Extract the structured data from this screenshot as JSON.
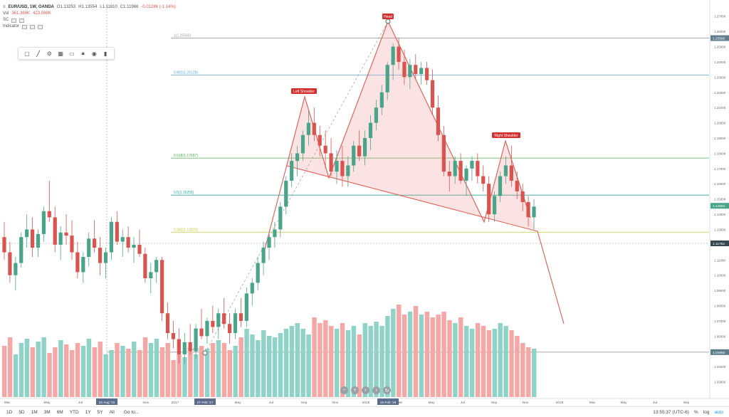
{
  "legend": {
    "symbol": "EUR/USD, 1W, OANDA",
    "open": "O1.13253",
    "high": "H1.13554",
    "low": "L1.11810",
    "close": "C1.11966",
    "change": "-0.01286 (-1.14%)",
    "vol_label": "Vol",
    "vol_value": "361.369K",
    "vol_value2": "423.598K",
    "row3_label": "SC",
    "row4_label": "Indicator"
  },
  "drawing_toolbar": {
    "tools": [
      "rect-icon",
      "pencil-icon",
      "settings-icon",
      "template-icon",
      "visibility-icon",
      "lock-icon",
      "eye-icon",
      "trash-icon"
    ]
  },
  "fib": [
    {
      "label": "1(1.25560)",
      "value": 1.2556,
      "color": "#9e9e9e"
    },
    {
      "label": "0.882(1.23128)",
      "value": 1.23128,
      "color": "#5aa9e6"
    },
    {
      "label": "0.618(1.17687)",
      "value": 1.17687,
      "color": "#4caf50"
    },
    {
      "label": "0.5(1.15255)",
      "value": 1.15255,
      "color": "#26a69a"
    },
    {
      "label": "0.382(1.12823)",
      "value": 1.12823,
      "color": "#c0ca33"
    },
    {
      "label": "0(1.04950)",
      "value": 1.0495,
      "color": "#9e9e9e"
    }
  ],
  "pattern_labels": {
    "head": "Head",
    "left_shoulder": "Left Shoulder",
    "right_shoulder": "Right Shoulder"
  },
  "price_axis": {
    "ticks": [
      "1.27000",
      "1.26000",
      "1.25000",
      "1.24000",
      "1.23000",
      "1.22000",
      "1.21000",
      "1.20000",
      "1.19000",
      "1.18000",
      "1.17000",
      "1.16000",
      "1.15000",
      "1.14000",
      "1.13000",
      "1.12000",
      "1.11000",
      "1.10000",
      "1.09000",
      "1.08000",
      "1.07000",
      "1.06000",
      "1.05000",
      "1.04000",
      "1.03000"
    ],
    "current_price": "1.11752",
    "tag_top": "1.25560",
    "tag_mid": "1.14554",
    "tag_bottom": "1.04950"
  },
  "time_axis": {
    "labels": [
      "Mar",
      "May",
      "Jul",
      "22 Aug '16",
      "Nov",
      "2017",
      "27 Feb '17",
      "May",
      "Jul",
      "Sep",
      "Nov",
      "2018",
      "15 Feb '18",
      "Mar",
      "May",
      "Jul",
      "Sep",
      "Nov",
      "2019",
      "Mar",
      "May",
      "Jul",
      "Sep"
    ]
  },
  "nav_controls": [
    "−",
    "+",
    "‹",
    "›",
    "↻"
  ],
  "bottom": {
    "timeframes": [
      "1D",
      "5D",
      "1M",
      "3M",
      "6M",
      "YTD",
      "1Y",
      "5Y",
      "All"
    ],
    "goto": "Go to...",
    "clock": "13:55:37 (UTC-6)",
    "pct": "%",
    "log": "log",
    "auto": "auto"
  },
  "chart_data": {
    "type": "candlestick",
    "title": "",
    "symbol": "EUR/USD, 1W, OANDA",
    "ylim": [
      1.02,
      1.275
    ],
    "candles": [
      [
        1.125,
        1.135,
        1.11,
        1.115
      ],
      [
        1.115,
        1.122,
        1.095,
        1.1
      ],
      [
        1.1,
        1.112,
        1.09,
        1.108
      ],
      [
        1.108,
        1.128,
        1.105,
        1.125
      ],
      [
        1.125,
        1.14,
        1.118,
        1.13
      ],
      [
        1.13,
        1.138,
        1.112,
        1.118
      ],
      [
        1.118,
        1.13,
        1.112,
        1.127
      ],
      [
        1.127,
        1.145,
        1.122,
        1.142
      ],
      [
        1.142,
        1.162,
        1.135,
        1.138
      ],
      [
        1.138,
        1.145,
        1.115,
        1.12
      ],
      [
        1.12,
        1.132,
        1.11,
        1.128
      ],
      [
        1.128,
        1.14,
        1.12,
        1.126
      ],
      [
        1.126,
        1.136,
        1.11,
        1.115
      ],
      [
        1.115,
        1.122,
        1.098,
        1.102
      ],
      [
        1.102,
        1.115,
        1.095,
        1.112
      ],
      [
        1.112,
        1.128,
        1.106,
        1.124
      ],
      [
        1.124,
        1.136,
        1.115,
        1.118
      ],
      [
        1.118,
        1.125,
        1.1,
        1.108
      ],
      [
        1.108,
        1.118,
        1.098,
        1.115
      ],
      [
        1.115,
        1.138,
        1.11,
        1.135
      ],
      [
        1.135,
        1.142,
        1.12,
        1.122
      ],
      [
        1.122,
        1.13,
        1.112,
        1.125
      ],
      [
        1.125,
        1.132,
        1.115,
        1.118
      ],
      [
        1.118,
        1.125,
        1.108,
        1.12
      ],
      [
        1.12,
        1.13,
        1.112,
        1.114
      ],
      [
        1.114,
        1.118,
        1.095,
        1.098
      ],
      [
        1.098,
        1.108,
        1.088,
        1.102
      ],
      [
        1.102,
        1.112,
        1.095,
        1.11
      ],
      [
        1.11,
        1.112,
        1.07,
        1.075
      ],
      [
        1.075,
        1.082,
        1.058,
        1.062
      ],
      [
        1.062,
        1.07,
        1.052,
        1.058
      ],
      [
        1.058,
        1.065,
        1.042,
        1.048
      ],
      [
        1.048,
        1.062,
        1.042,
        1.056
      ],
      [
        1.056,
        1.068,
        1.048,
        1.05
      ],
      [
        1.05,
        1.068,
        1.045,
        1.065
      ],
      [
        1.065,
        1.078,
        1.058,
        1.06
      ],
      [
        1.06,
        1.072,
        1.055,
        1.07
      ],
      [
        1.07,
        1.08,
        1.062,
        1.066
      ],
      [
        1.066,
        1.078,
        1.058,
        1.075
      ],
      [
        1.075,
        1.085,
        1.065,
        1.068
      ],
      [
        1.068,
        1.075,
        1.055,
        1.062
      ],
      [
        1.062,
        1.078,
        1.058,
        1.075
      ],
      [
        1.075,
        1.085,
        1.066,
        1.07
      ],
      [
        1.07,
        1.092,
        1.066,
        1.088
      ],
      [
        1.088,
        1.098,
        1.08,
        1.095
      ],
      [
        1.095,
        1.112,
        1.09,
        1.108
      ],
      [
        1.108,
        1.122,
        1.1,
        1.118
      ],
      [
        1.118,
        1.128,
        1.11,
        1.125
      ],
      [
        1.125,
        1.135,
        1.118,
        1.13
      ],
      [
        1.13,
        1.148,
        1.125,
        1.145
      ],
      [
        1.145,
        1.165,
        1.14,
        1.162
      ],
      [
        1.162,
        1.18,
        1.158,
        1.175
      ],
      [
        1.175,
        1.185,
        1.165,
        1.18
      ],
      [
        1.18,
        1.195,
        1.175,
        1.192
      ],
      [
        1.192,
        1.208,
        1.185,
        1.2
      ],
      [
        1.2,
        1.21,
        1.188,
        1.192
      ],
      [
        1.192,
        1.198,
        1.178,
        1.185
      ],
      [
        1.185,
        1.195,
        1.17,
        1.18
      ],
      [
        1.18,
        1.19,
        1.165,
        1.168
      ],
      [
        1.168,
        1.182,
        1.16,
        1.175
      ],
      [
        1.175,
        1.185,
        1.158,
        1.165
      ],
      [
        1.165,
        1.178,
        1.158,
        1.172
      ],
      [
        1.172,
        1.188,
        1.168,
        1.185
      ],
      [
        1.185,
        1.195,
        1.175,
        1.178
      ],
      [
        1.178,
        1.195,
        1.172,
        1.19
      ],
      [
        1.19,
        1.205,
        1.182,
        1.2
      ],
      [
        1.2,
        1.215,
        1.195,
        1.21
      ],
      [
        1.21,
        1.225,
        1.205,
        1.22
      ],
      [
        1.22,
        1.24,
        1.215,
        1.238
      ],
      [
        1.238,
        1.252,
        1.228,
        1.25
      ],
      [
        1.25,
        1.256,
        1.235,
        1.24
      ],
      [
        1.24,
        1.248,
        1.225,
        1.23
      ],
      [
        1.23,
        1.242,
        1.222,
        1.238
      ],
      [
        1.238,
        1.245,
        1.228,
        1.232
      ],
      [
        1.232,
        1.24,
        1.225,
        1.236
      ],
      [
        1.236,
        1.24,
        1.225,
        1.228
      ],
      [
        1.228,
        1.235,
        1.205,
        1.21
      ],
      [
        1.21,
        1.218,
        1.188,
        1.192
      ],
      [
        1.192,
        1.198,
        1.165,
        1.168
      ],
      [
        1.168,
        1.175,
        1.155,
        1.165
      ],
      [
        1.165,
        1.178,
        1.16,
        1.175
      ],
      [
        1.175,
        1.18,
        1.16,
        1.162
      ],
      [
        1.162,
        1.172,
        1.152,
        1.17
      ],
      [
        1.17,
        1.178,
        1.162,
        1.175
      ],
      [
        1.175,
        1.18,
        1.16,
        1.165
      ],
      [
        1.165,
        1.172,
        1.155,
        1.16
      ],
      [
        1.16,
        1.165,
        1.135,
        1.14
      ],
      [
        1.14,
        1.155,
        1.135,
        1.152
      ],
      [
        1.152,
        1.168,
        1.148,
        1.165
      ],
      [
        1.165,
        1.178,
        1.16,
        1.172
      ],
      [
        1.172,
        1.185,
        1.158,
        1.162
      ],
      [
        1.162,
        1.168,
        1.15,
        1.155
      ],
      [
        1.155,
        1.16,
        1.142,
        1.148
      ],
      [
        1.148,
        1.152,
        1.132,
        1.138
      ],
      [
        1.138,
        1.15,
        1.13,
        1.145
      ]
    ],
    "volume": [
      360,
      420,
      300,
      380,
      410,
      350,
      390,
      420,
      310,
      350,
      400,
      370,
      330,
      380,
      360,
      410,
      350,
      390,
      300,
      330,
      380,
      360,
      340,
      390,
      330,
      420,
      380,
      410,
      350,
      380,
      260,
      300,
      280,
      320,
      300,
      360,
      340,
      380,
      400,
      380,
      330,
      360,
      420,
      480,
      440,
      400,
      470,
      430,
      420,
      450,
      480,
      500,
      520,
      480,
      440,
      560,
      520,
      540,
      500,
      480,
      520,
      470,
      500,
      440,
      520,
      500,
      530,
      500,
      570,
      620,
      650,
      580,
      600,
      640,
      580,
      600,
      560,
      580,
      600,
      540,
      520,
      560,
      500,
      480,
      520,
      500,
      470,
      480,
      520,
      500,
      470,
      430,
      380,
      350,
      340
    ]
  }
}
